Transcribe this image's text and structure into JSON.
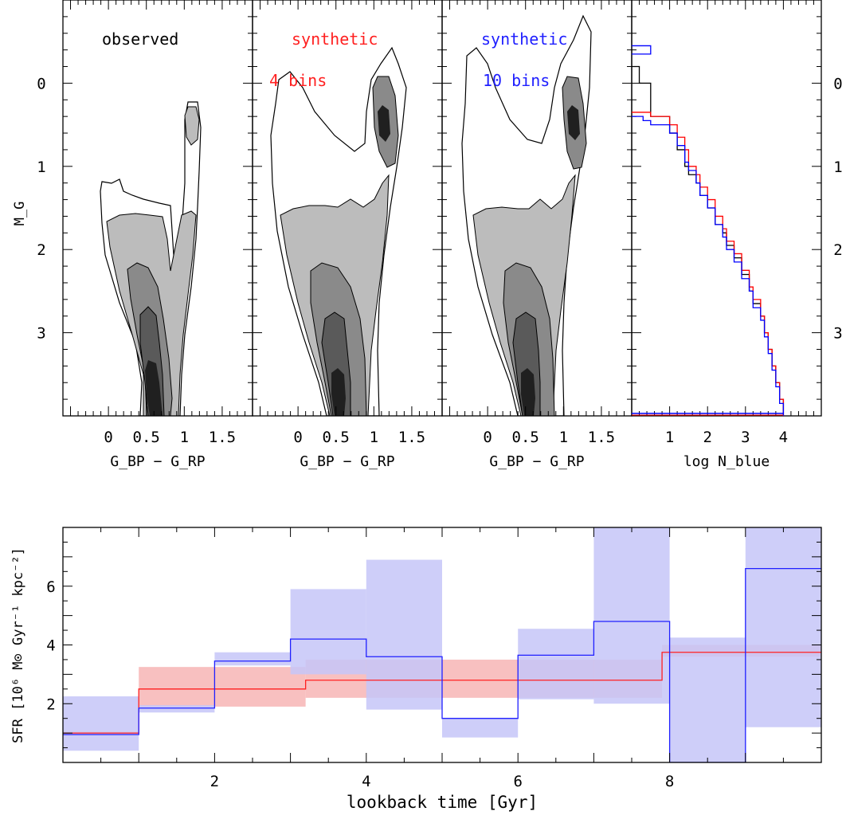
{
  "chart_data": [
    {
      "type": "heatmap",
      "panel": "observed",
      "label": "observed",
      "label_color": "#000000",
      "xlabel": "G_BP − G_RP",
      "ylabel": "M_G",
      "xlim": [
        -0.6,
        1.9
      ],
      "ylim": [
        4.0,
        -1.0
      ],
      "x_ticks": [
        "0",
        "0.5",
        "1",
        "1.5"
      ],
      "y_ticks": [
        "0",
        "1",
        "2",
        "3"
      ],
      "density_levels": [
        "#ffffff",
        "#bcbcbc",
        "#8a8a8a",
        "#5a5a5a",
        "#202020"
      ]
    },
    {
      "type": "heatmap",
      "panel": "synthetic-4",
      "label": [
        "synthetic",
        "4 bins"
      ],
      "label_color": "#ff2020",
      "xlabel": "G_BP − G_RP",
      "xlim": [
        -0.6,
        1.9
      ],
      "ylim": [
        4.0,
        -1.0
      ],
      "x_ticks": [
        "0",
        "0.5",
        "1",
        "1.5"
      ]
    },
    {
      "type": "heatmap",
      "panel": "synthetic-10",
      "label": [
        "synthetic",
        "10 bins"
      ],
      "label_color": "#2020ff",
      "xlabel": "G_BP − G_RP",
      "xlim": [
        -0.6,
        1.9
      ],
      "ylim": [
        4.0,
        -1.0
      ],
      "x_ticks": [
        "0",
        "0.5",
        "1",
        "1.5"
      ]
    },
    {
      "type": "line",
      "panel": "luminosity-function",
      "xlabel": "log N_blue",
      "xlim": [
        0,
        5
      ],
      "ylim": [
        4.0,
        -1.0
      ],
      "x_ticks": [
        "1",
        "2",
        "3",
        "4"
      ],
      "y_ticks_right": [
        "0",
        "1",
        "2",
        "3"
      ],
      "series": [
        {
          "color": "#000000",
          "logN": [
            0.0,
            0.2,
            0.5,
            1.0,
            1.2,
            1.4,
            1.5,
            1.7,
            1.8,
            2.0,
            2.2,
            2.4,
            2.5,
            2.7,
            2.9,
            3.1,
            3.2,
            3.4,
            3.5,
            3.6,
            3.7,
            3.8,
            3.9,
            4.0,
            4.0
          ],
          "mag": [
            -0.2,
            0.0,
            0.4,
            0.6,
            0.8,
            1.0,
            1.1,
            1.2,
            1.35,
            1.5,
            1.7,
            1.8,
            1.95,
            2.1,
            2.3,
            2.5,
            2.65,
            2.8,
            3.0,
            3.2,
            3.4,
            3.6,
            3.8,
            3.95,
            4.0
          ]
        },
        {
          "color": "#ff0000",
          "logN": [
            0.0,
            0.5,
            1.0,
            1.2,
            1.4,
            1.5,
            1.7,
            1.8,
            2.0,
            2.2,
            2.4,
            2.5,
            2.7,
            2.9,
            3.1,
            3.2,
            3.4,
            3.5,
            3.6,
            3.7,
            3.8,
            3.9,
            4.0,
            4.0
          ],
          "mag": [
            0.35,
            0.4,
            0.5,
            0.65,
            0.8,
            1.0,
            1.1,
            1.25,
            1.4,
            1.6,
            1.75,
            1.9,
            2.05,
            2.25,
            2.45,
            2.6,
            2.8,
            3.0,
            3.2,
            3.4,
            3.6,
            3.8,
            3.95,
            4.0
          ]
        },
        {
          "color": "#0000ff",
          "logN": [
            0.0,
            0.3,
            0.5,
            1.0,
            1.2,
            1.4,
            1.5,
            1.7,
            1.8,
            2.0,
            2.2,
            2.4,
            2.5,
            2.7,
            2.9,
            3.1,
            3.2,
            3.4,
            3.5,
            3.6,
            3.7,
            3.8,
            3.9,
            4.0,
            4.0
          ],
          "mag": [
            0.4,
            0.45,
            0.5,
            0.6,
            0.75,
            0.95,
            1.05,
            1.2,
            1.35,
            1.5,
            1.7,
            1.85,
            2.0,
            2.15,
            2.35,
            2.5,
            2.7,
            2.85,
            3.05,
            3.25,
            3.45,
            3.65,
            3.85,
            3.95,
            4.0
          ]
        },
        {
          "color": "#0000ff",
          "logN": [
            0.0,
            0.5,
            0.5,
            0.0
          ],
          "mag": [
            -0.45,
            -0.45,
            -0.35,
            -0.35
          ]
        }
      ]
    },
    {
      "type": "line",
      "panel": "sfr",
      "xlabel": "lookback time [Gyr]",
      "ylabel": "SFR [10⁶ M⊙ Gyr⁻¹ kpc⁻²]",
      "xlim": [
        0,
        10
      ],
      "ylim": [
        0,
        8
      ],
      "x_ticks": [
        "2",
        "4",
        "6",
        "8"
      ],
      "y_ticks": [
        "2",
        "4",
        "6"
      ],
      "series": [
        {
          "color": "#2020ff",
          "band_color": "#c6c6f8",
          "bins": [
            [
              0,
              1
            ],
            [
              1,
              2
            ],
            [
              2,
              3
            ],
            [
              3,
              4
            ],
            [
              4,
              5
            ],
            [
              5,
              6
            ],
            [
              6,
              7
            ],
            [
              7,
              8
            ],
            [
              8,
              9
            ],
            [
              9,
              10
            ]
          ],
          "values": [
            0.95,
            1.85,
            3.45,
            4.2,
            3.6,
            1.5,
            3.65,
            4.8,
            0.0,
            6.6
          ],
          "low": [
            0.4,
            1.7,
            3.3,
            3.0,
            1.8,
            0.85,
            2.15,
            2.0,
            0.0,
            1.2
          ],
          "high": [
            2.25,
            1.95,
            3.75,
            5.9,
            6.9,
            1.5,
            4.55,
            8.0,
            4.25,
            8.0
          ]
        },
        {
          "color": "#ff2020",
          "band_color": "#f8c0c0",
          "bins": [
            [
              0,
              1
            ],
            [
              1,
              3.2
            ],
            [
              3.2,
              7.9
            ],
            [
              7.9,
              10
            ]
          ],
          "values": [
            1.0,
            2.5,
            2.8,
            3.75
          ],
          "low": [
            0.95,
            1.9,
            2.2,
            3.6
          ],
          "high": [
            1.05,
            3.25,
            3.5,
            4.0
          ]
        }
      ]
    }
  ]
}
